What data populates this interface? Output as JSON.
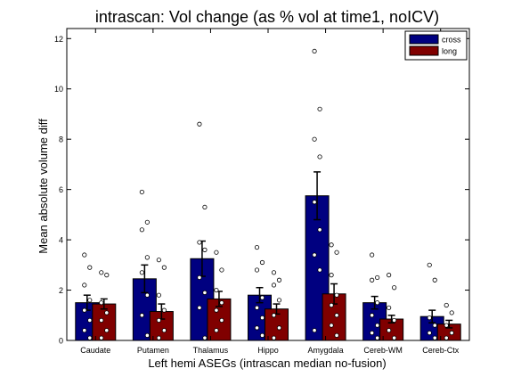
{
  "chart_data": {
    "type": "bar",
    "title": "intrascan: Vol change (as % vol at time1, noICV)",
    "xlabel": "Left hemi ASEGs (intrascan median no-fusion)",
    "ylabel": "Mean absolute volume diff",
    "ylim": [
      0,
      12.4
    ],
    "yticks": [
      0,
      2,
      4,
      6,
      8,
      10,
      12
    ],
    "categories": [
      "Caudate",
      "Putamen",
      "Thalamus",
      "Hippo",
      "Amygdala",
      "Cereb-WM",
      "Cereb-Ctx"
    ],
    "legend_position": "top-right",
    "series": [
      {
        "name": "cross",
        "color": "#000080",
        "values": [
          1.5,
          2.45,
          3.25,
          1.8,
          5.75,
          1.5,
          0.95
        ],
        "errors": [
          0.3,
          0.55,
          0.7,
          0.3,
          0.95,
          0.25,
          0.25
        ],
        "points": [
          [
            3.4,
            2.9,
            2.2,
            1.6,
            1.2,
            0.8,
            0.4,
            0.1
          ],
          [
            5.9,
            4.7,
            4.4,
            3.3,
            2.7,
            1.8,
            1.0,
            0.2
          ],
          [
            8.6,
            5.3,
            3.9,
            3.6,
            2.5,
            1.9,
            1.3,
            0.1
          ],
          [
            3.7,
            3.1,
            2.8,
            1.7,
            1.3,
            0.9,
            0.5,
            0.2
          ],
          [
            11.5,
            9.2,
            8.0,
            7.3,
            5.5,
            4.4,
            3.4,
            2.8,
            0.4
          ],
          [
            3.4,
            2.5,
            2.4,
            1.5,
            1.0,
            0.6,
            0.3,
            0.1
          ],
          [
            3.0,
            2.4,
            0.9,
            0.6,
            0.3,
            0.1
          ]
        ]
      },
      {
        "name": "long",
        "color": "#800000",
        "values": [
          1.45,
          1.15,
          1.65,
          1.25,
          1.85,
          0.85,
          0.65
        ],
        "errors": [
          0.2,
          0.3,
          0.3,
          0.2,
          0.4,
          0.15,
          0.15
        ],
        "points": [
          [
            2.7,
            2.6,
            1.5,
            1.1,
            0.8,
            0.4,
            0.1
          ],
          [
            3.2,
            2.9,
            1.8,
            1.2,
            0.8,
            0.4,
            0.1
          ],
          [
            3.5,
            2.8,
            2.0,
            1.5,
            1.2,
            0.8,
            0.4
          ],
          [
            2.7,
            2.4,
            2.2,
            1.6,
            1.0,
            0.5,
            0.1
          ],
          [
            3.8,
            3.5,
            2.6,
            1.8,
            1.4,
            1.0,
            0.6,
            0.2
          ],
          [
            2.6,
            2.1,
            1.3,
            0.8,
            0.4,
            0.1
          ],
          [
            1.4,
            1.1,
            0.6,
            0.3,
            0.1
          ]
        ]
      }
    ]
  }
}
